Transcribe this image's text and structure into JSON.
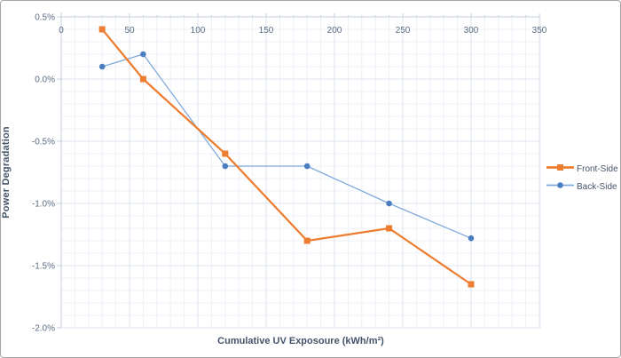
{
  "window": {
    "background": "#FFFFFF",
    "border_color": "#A6A6A6"
  },
  "chart_data": {
    "type": "line",
    "title": "",
    "xlabel": "Cumulative UV Exposoure (kWh/m²)",
    "ylabel": "Power Degradation",
    "x_ticks": [
      0,
      50,
      100,
      150,
      200,
      250,
      300,
      350
    ],
    "y_tick_labels": [
      "0.5%",
      "0.0%",
      "-0.5%",
      "-1.0%",
      "-1.5%",
      "-2.0%"
    ],
    "y_tick_values_pct": [
      0.5,
      0.0,
      -0.5,
      -1.0,
      -1.5,
      -2.0
    ],
    "xlim": [
      0,
      350
    ],
    "ylim_pct": [
      -2.0,
      0.5
    ],
    "x_minor_step": 10,
    "y_minor_step_pct": 0.1,
    "grid": "major and minor, both axes",
    "legend_position": "right",
    "x": [
      30,
      60,
      120,
      180,
      240,
      300
    ],
    "series": [
      {
        "name": "Front-Side",
        "values_pct": [
          0.4,
          0.0,
          -0.6,
          -1.3,
          -1.2,
          -1.65
        ],
        "color": "#ED7D31",
        "marker": "square",
        "marker_color": "#ED7D31",
        "line_width": 2.25
      },
      {
        "name": "Back-Side",
        "values_pct": [
          0.1,
          0.2,
          -0.7,
          -0.7,
          -1.0,
          -1.28
        ],
        "color": "#7FA8DC",
        "marker": "circle",
        "marker_color": "#4A7EC0",
        "line_width": 1.25
      }
    ],
    "style": {
      "major_grid_color": "#DCE3EE",
      "minor_grid_color": "#EEF1F8",
      "axis_line_color": "#C5CEDB",
      "tick_label_color": "#5A6B83",
      "axis_title_color": "#44546A"
    }
  }
}
